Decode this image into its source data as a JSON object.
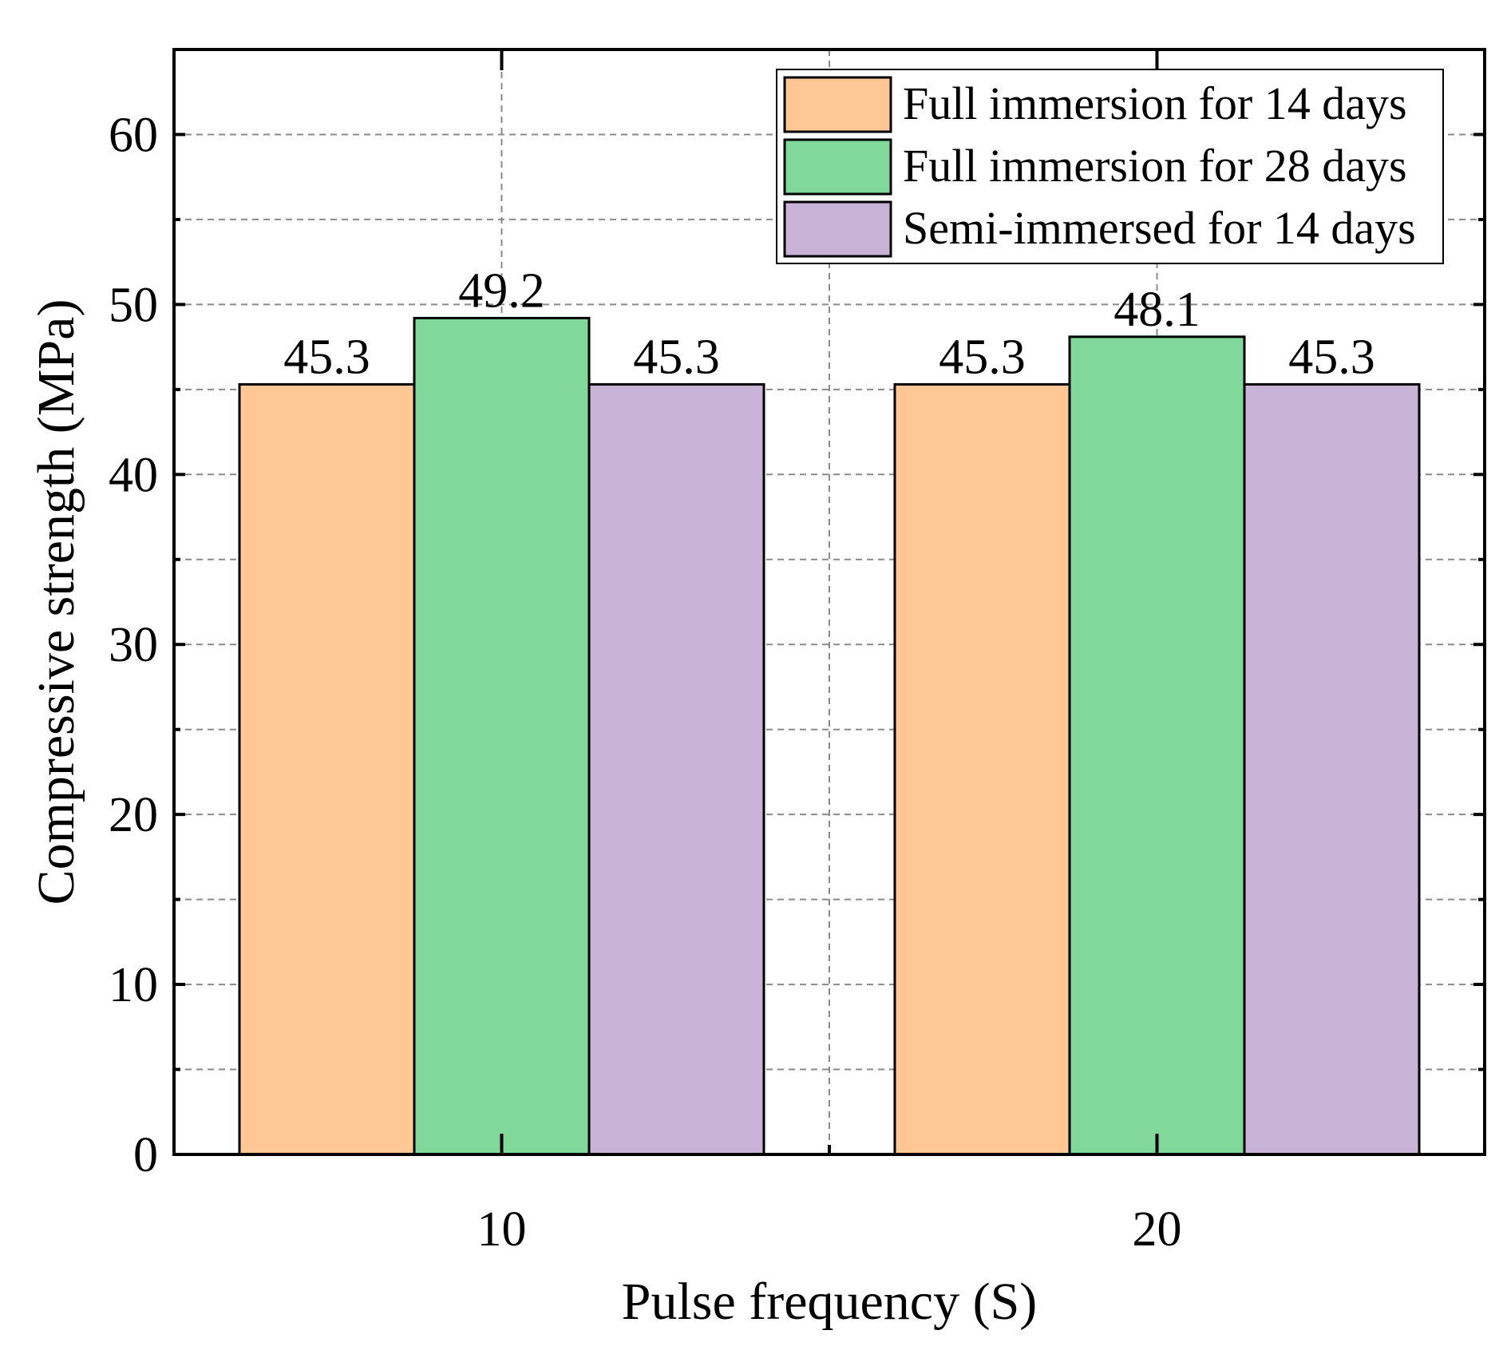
{
  "chart_data": {
    "type": "bar",
    "categories": [
      "10",
      "20"
    ],
    "series": [
      {
        "name": "Full immersion for 14 days",
        "values": [
          45.3,
          45.3
        ],
        "color": "#FEC794"
      },
      {
        "name": "Full immersion for 28 days",
        "values": [
          49.2,
          48.1
        ],
        "color": "#80D89A"
      },
      {
        "name": "Semi-immersed for 14 days",
        "values": [
          45.3,
          45.3
        ],
        "color": "#C8B2D6"
      }
    ],
    "data_labels": [
      [
        "45.3",
        "45.3"
      ],
      [
        "49.2",
        "48.1"
      ],
      [
        "45.3",
        "45.3"
      ]
    ],
    "title": "",
    "xlabel": "Pulse frequency (S)",
    "ylabel": "Compressive strength (MPa)",
    "ylim": [
      0,
      65
    ],
    "yticks": [
      0,
      10,
      20,
      30,
      40,
      50,
      60
    ],
    "grid": true,
    "legend_position": "top-right"
  }
}
